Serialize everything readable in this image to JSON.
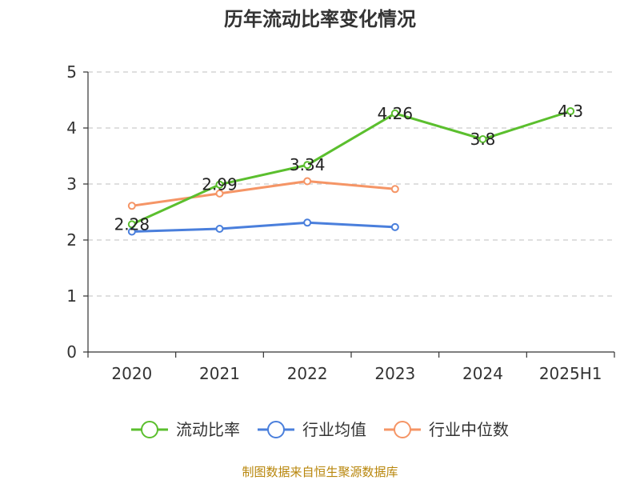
{
  "chart_data": {
    "type": "line",
    "title": "历年流动比率变化情况",
    "xlabel": "",
    "ylabel": "",
    "categories": [
      "2020",
      "2021",
      "2022",
      "2023",
      "2024",
      "2025H1"
    ],
    "ylim": [
      0,
      5
    ],
    "yticks": [
      "0",
      "1",
      "2",
      "3",
      "4",
      "5"
    ],
    "grid": true,
    "legend_position": "bottom",
    "series": [
      {
        "name": "流动比率",
        "color": "#5bbf2e",
        "values": [
          2.28,
          2.99,
          3.34,
          4.26,
          3.8,
          4.3
        ],
        "labels": [
          "2.28",
          "2.99",
          "3.34",
          "4.26",
          "3.8",
          "4.3"
        ]
      },
      {
        "name": "行业均值",
        "color": "#4a7fdc",
        "values": [
          2.15,
          2.2,
          2.31,
          2.23,
          null,
          null
        ],
        "labels": []
      },
      {
        "name": "行业中位数",
        "color": "#f59566",
        "values": [
          2.61,
          2.83,
          3.05,
          2.91,
          null,
          null
        ],
        "labels": []
      }
    ]
  },
  "footer": {
    "source": "制图数据来自恒生聚源数据库"
  }
}
